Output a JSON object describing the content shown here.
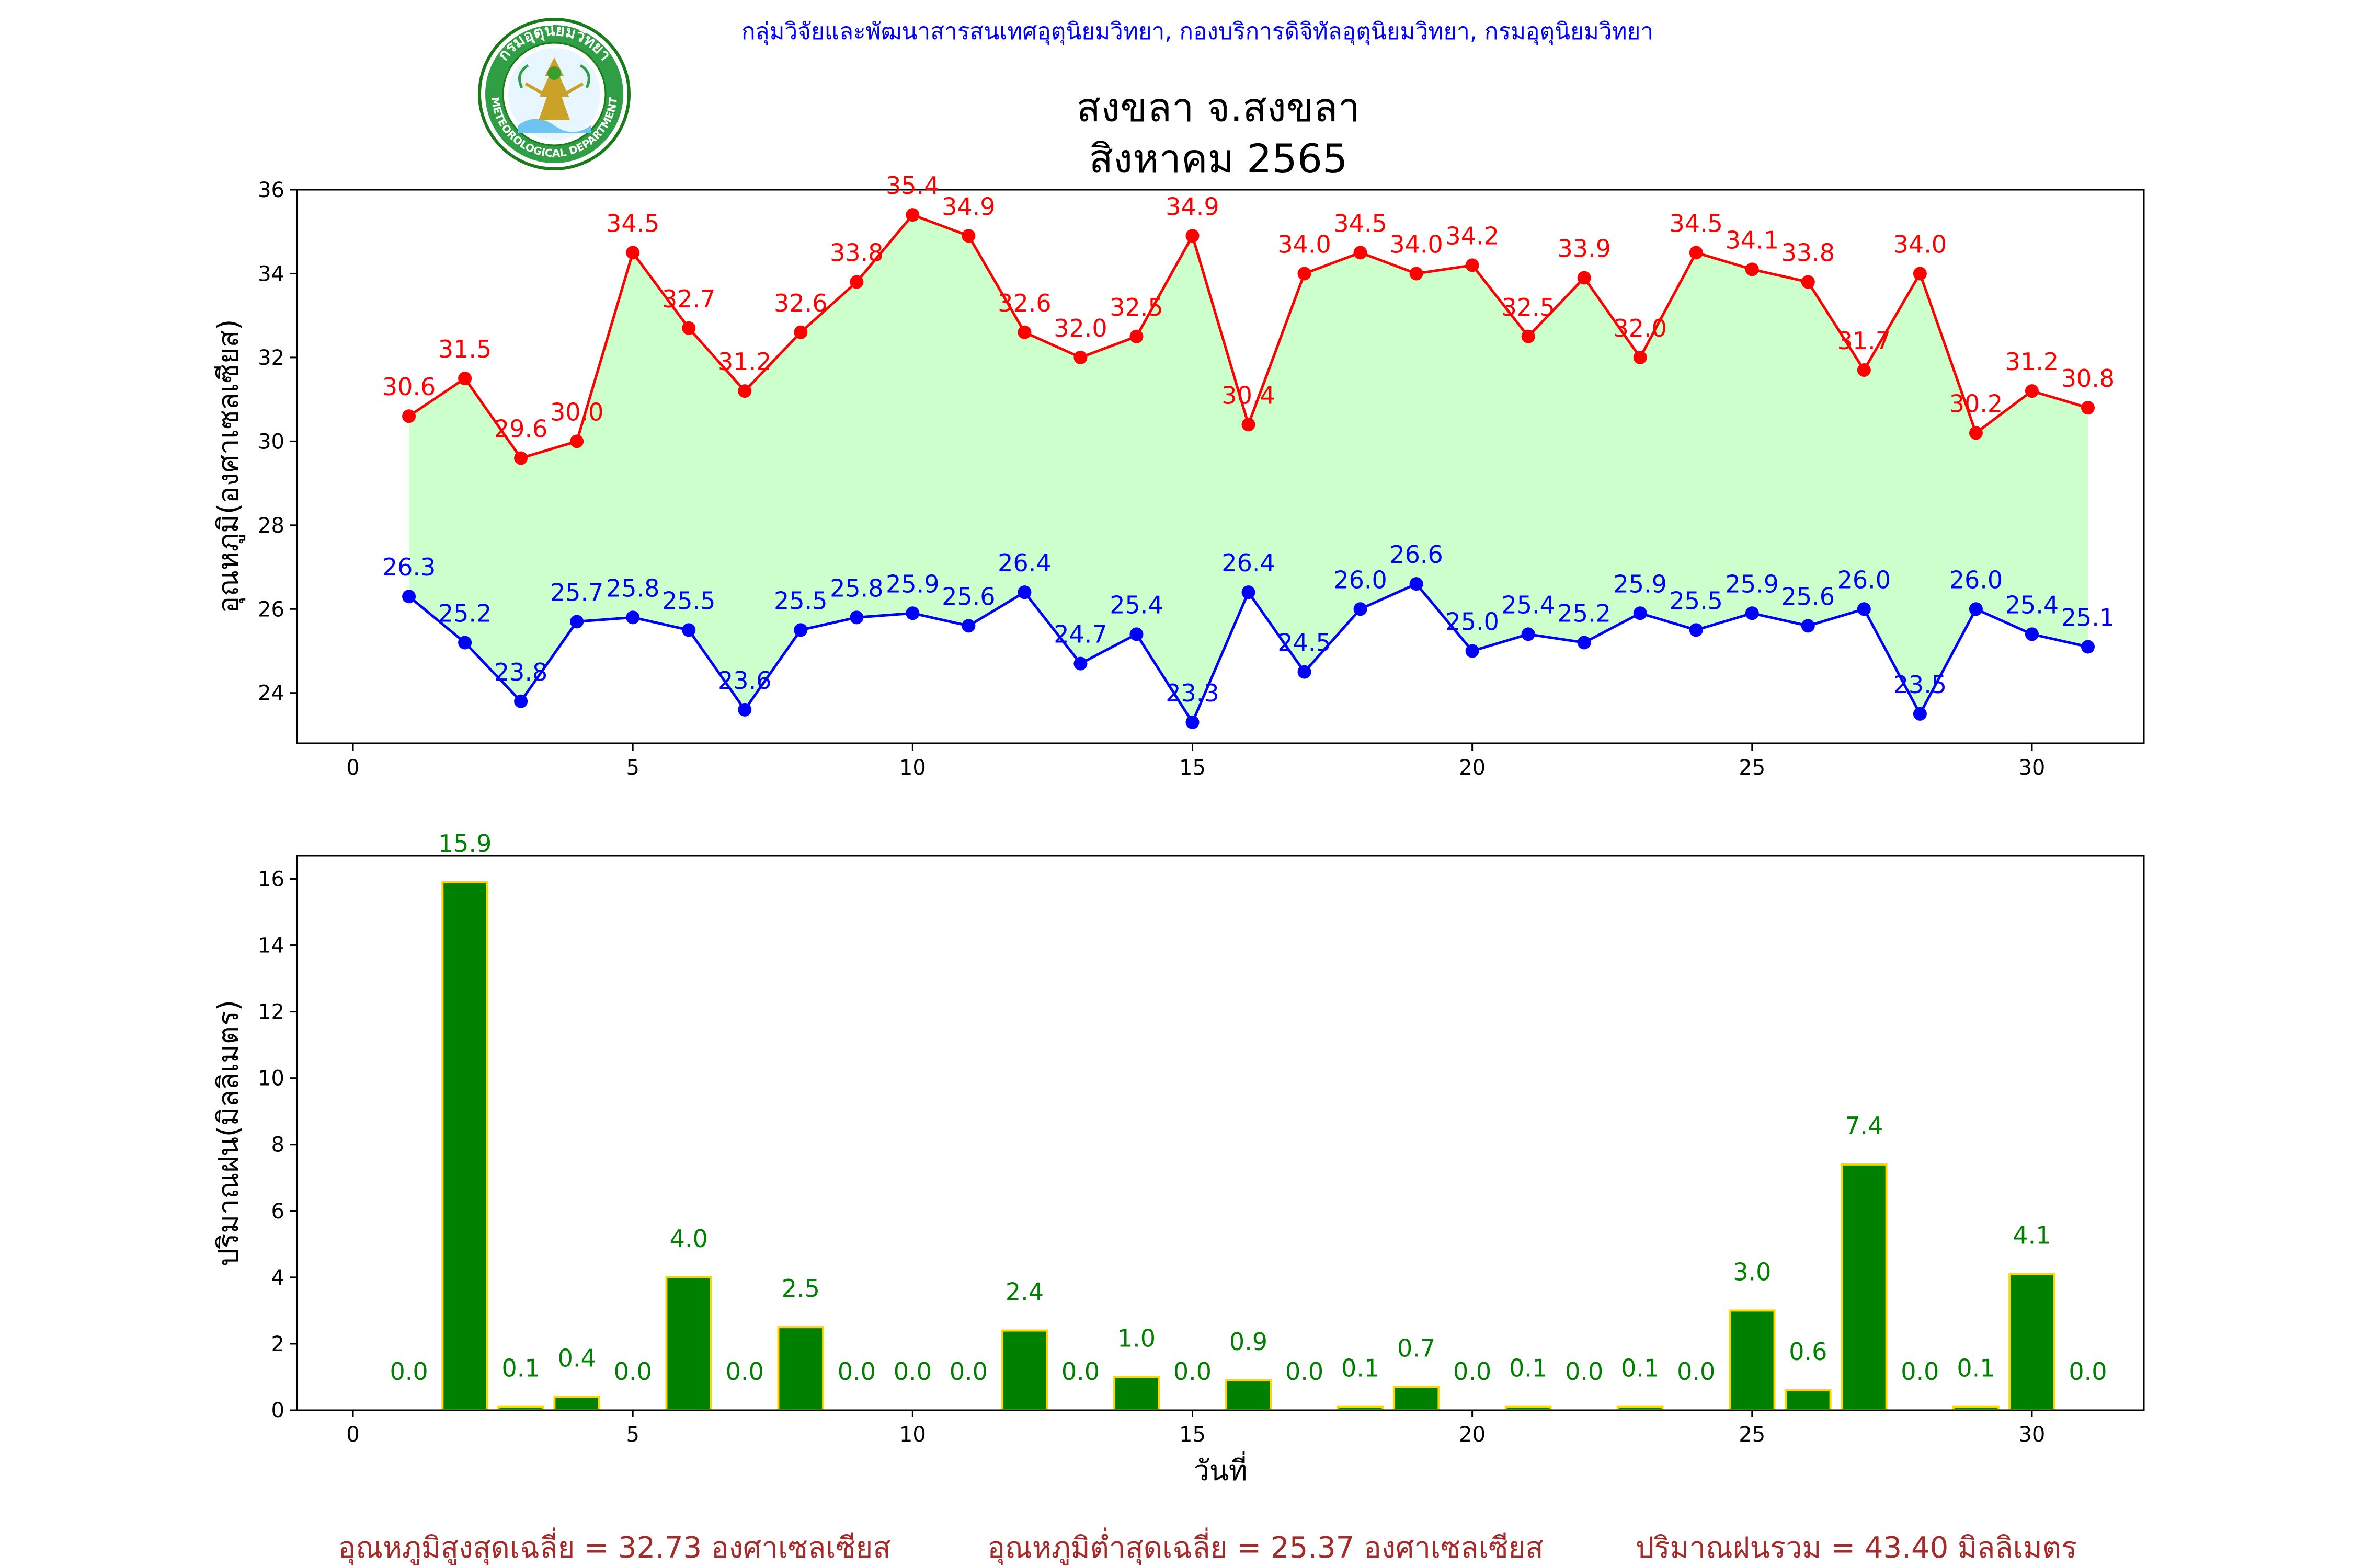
{
  "header": {
    "org": "กลุ่มวิจัยและพัฒนาสารสนเทศอุตุนิยมวิทยา, กองบริการดิจิทัลอุตุนิยมวิทยา, กรมอุตุนิยมวิทยา",
    "org_color": "#0000ff",
    "logo_icon": "meteorological-department-seal-icon",
    "logo_text": "กรมอุตุนิยมวิทยา METEOROLOGICAL DEPARTMENT",
    "title_line1": "สงขลา จ.สงขลา",
    "title_line2": "สิงหาคม 2565"
  },
  "chart_data": [
    {
      "type": "line",
      "ylabel": "อุณหภูมิ(องศาเซลเซียส)",
      "xlabel": "",
      "xlim": [
        -1,
        32
      ],
      "ylim": [
        22.8,
        36
      ],
      "xticks": [
        0,
        5,
        10,
        15,
        20,
        25,
        30
      ],
      "yticks": [
        24,
        26,
        28,
        30,
        32,
        34,
        36
      ],
      "x": [
        1,
        2,
        3,
        4,
        5,
        6,
        7,
        8,
        9,
        10,
        11,
        12,
        13,
        14,
        15,
        16,
        17,
        18,
        19,
        20,
        21,
        22,
        23,
        24,
        25,
        26,
        27,
        28,
        29,
        30,
        31
      ],
      "series": [
        {
          "name": "max",
          "color": "#ff0000",
          "values": [
            30.6,
            31.5,
            29.6,
            30.0,
            34.5,
            32.7,
            31.2,
            32.6,
            33.8,
            35.4,
            34.9,
            32.6,
            32.0,
            32.5,
            34.9,
            30.4,
            34.0,
            34.5,
            34.0,
            34.2,
            32.5,
            33.9,
            32.0,
            34.5,
            34.1,
            33.8,
            31.7,
            34.0,
            30.2,
            31.2,
            30.8
          ]
        },
        {
          "name": "min",
          "color": "#0000ff",
          "values": [
            26.3,
            25.2,
            23.8,
            25.7,
            25.8,
            25.5,
            23.6,
            25.5,
            25.8,
            25.9,
            25.6,
            26.4,
            24.7,
            25.4,
            23.3,
            26.4,
            24.5,
            26.0,
            26.6,
            25.0,
            25.4,
            25.2,
            25.9,
            25.5,
            25.9,
            25.6,
            26.0,
            23.5,
            26.0,
            25.4,
            25.1
          ]
        }
      ],
      "fill_color": "#ccffcc",
      "grid": false
    },
    {
      "type": "bar",
      "ylabel": "ปริมาณฝน(มิลลิเมตร)",
      "xlabel": "วันที่",
      "xlim": [
        -1,
        32
      ],
      "ylim": [
        0,
        16.7
      ],
      "xticks": [
        0,
        5,
        10,
        15,
        20,
        25,
        30
      ],
      "yticks": [
        0,
        2,
        4,
        6,
        8,
        10,
        12,
        14,
        16
      ],
      "x": [
        1,
        2,
        3,
        4,
        5,
        6,
        7,
        8,
        9,
        10,
        11,
        12,
        13,
        14,
        15,
        16,
        17,
        18,
        19,
        20,
        21,
        22,
        23,
        24,
        25,
        26,
        27,
        28,
        29,
        30,
        31
      ],
      "values": [
        0.0,
        15.9,
        0.1,
        0.4,
        0.0,
        4.0,
        0.0,
        2.5,
        0.0,
        0.0,
        0.0,
        2.4,
        0.0,
        1.0,
        0.0,
        0.9,
        0.0,
        0.1,
        0.7,
        0.0,
        0.1,
        0.0,
        0.1,
        0.0,
        3.0,
        0.6,
        7.4,
        0.0,
        0.1,
        4.1,
        0.0
      ],
      "bar_color": "#008000",
      "edge_color": "#ffd700",
      "label_color": "#008000",
      "grid": false
    }
  ],
  "footer": {
    "color": "#a52a2a",
    "avg_max": "อุณหภูมิสูงสุดเฉลี่ย = 32.73 องศาเซลเซียส",
    "avg_min": "อุณหภูมิต่ำสุดเฉลี่ย = 25.37 องศาเซลเซียส",
    "rain_total": "ปริมาณฝนรวม = 43.40 มิลลิเมตร"
  }
}
